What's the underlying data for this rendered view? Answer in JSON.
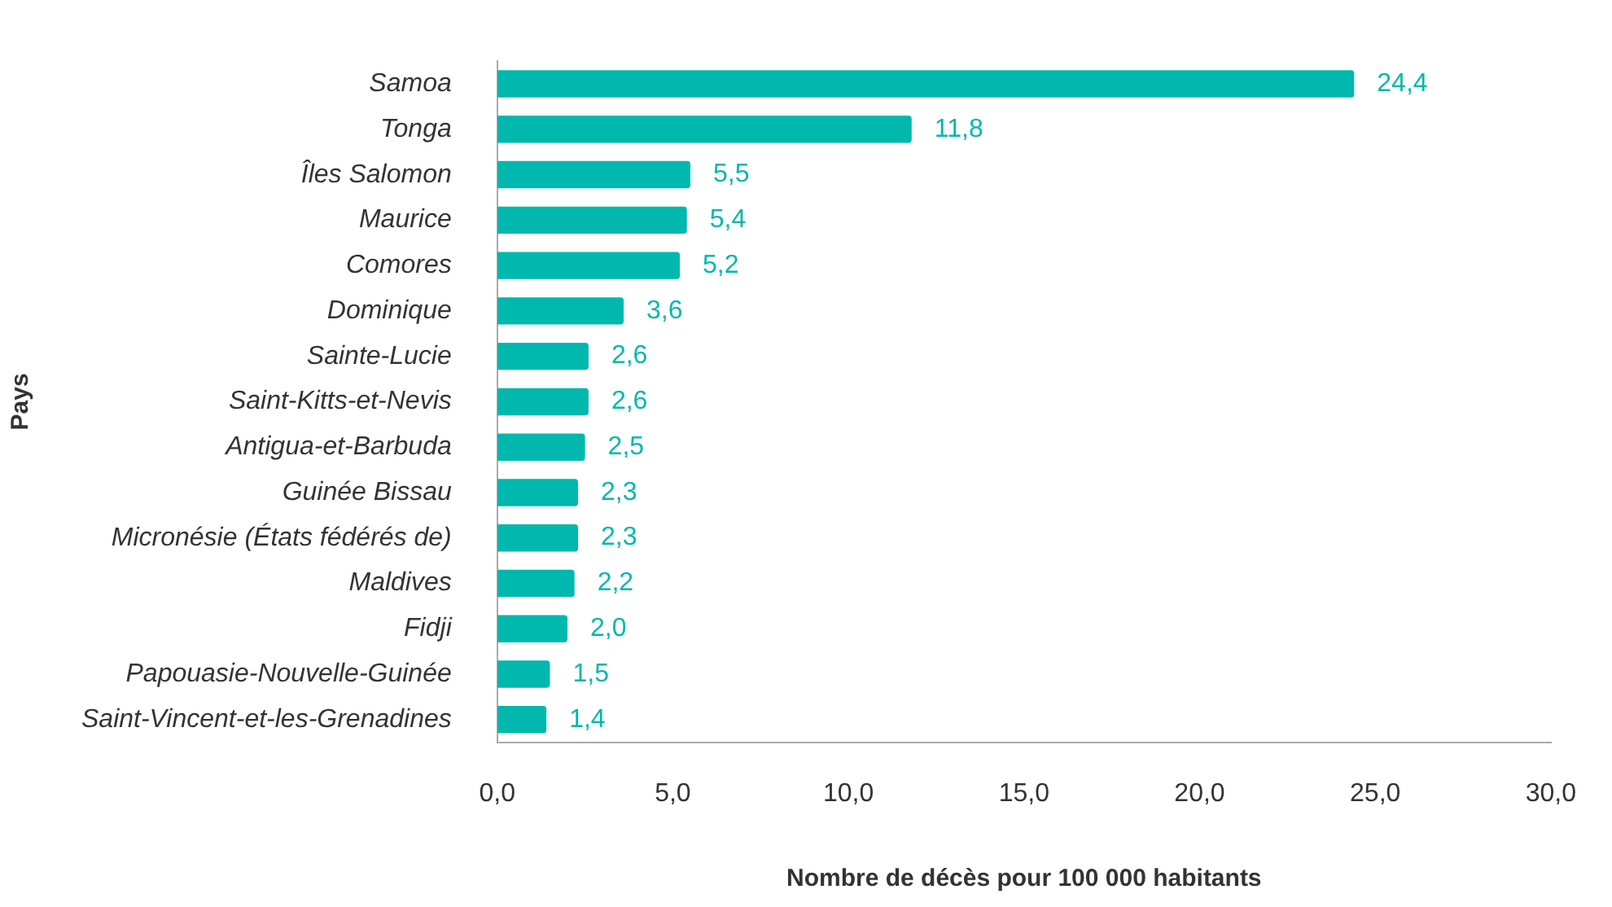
{
  "chart_data": {
    "type": "bar",
    "orientation": "horizontal",
    "xlabel": "Nombre de décès pour 100 000 habitants",
    "ylabel": "Pays",
    "categories": [
      "Samoa",
      "Tonga",
      "Îles Salomon",
      "Maurice",
      "Comores",
      "Dominique",
      "Sainte-Lucie",
      "Saint-Kitts-et-Nevis",
      "Antigua-et-Barbuda",
      "Guinée Bissau",
      "Micronésie (États fédérés de)",
      "Maldives",
      "Fidji",
      "Papouasie-Nouvelle-Guinée",
      "Saint-Vincent-et-les-Grenadines"
    ],
    "values": [
      24.4,
      11.8,
      5.5,
      5.4,
      5.2,
      3.6,
      2.6,
      2.6,
      2.5,
      2.3,
      2.3,
      2.2,
      2.0,
      1.5,
      1.4
    ],
    "value_labels": [
      "24,4",
      "11,8",
      "5,5",
      "5,4",
      "5,2",
      "3,6",
      "2,6",
      "2,6",
      "2,5",
      "2,3",
      "2,3",
      "2,2",
      "2,0",
      "1,5",
      "1,4"
    ],
    "color": "#00b8ad",
    "xlim": [
      0,
      30
    ],
    "xticks": [
      {
        "value": 0,
        "label": "0,0"
      },
      {
        "value": 5,
        "label": "5,0"
      },
      {
        "value": 10,
        "label": "10,0"
      },
      {
        "value": 15,
        "label": "15,0"
      },
      {
        "value": 20,
        "label": "20,0"
      },
      {
        "value": 25,
        "label": "25,0"
      },
      {
        "value": 30,
        "label": "30,0"
      }
    ],
    "grid": false,
    "legend": false
  }
}
